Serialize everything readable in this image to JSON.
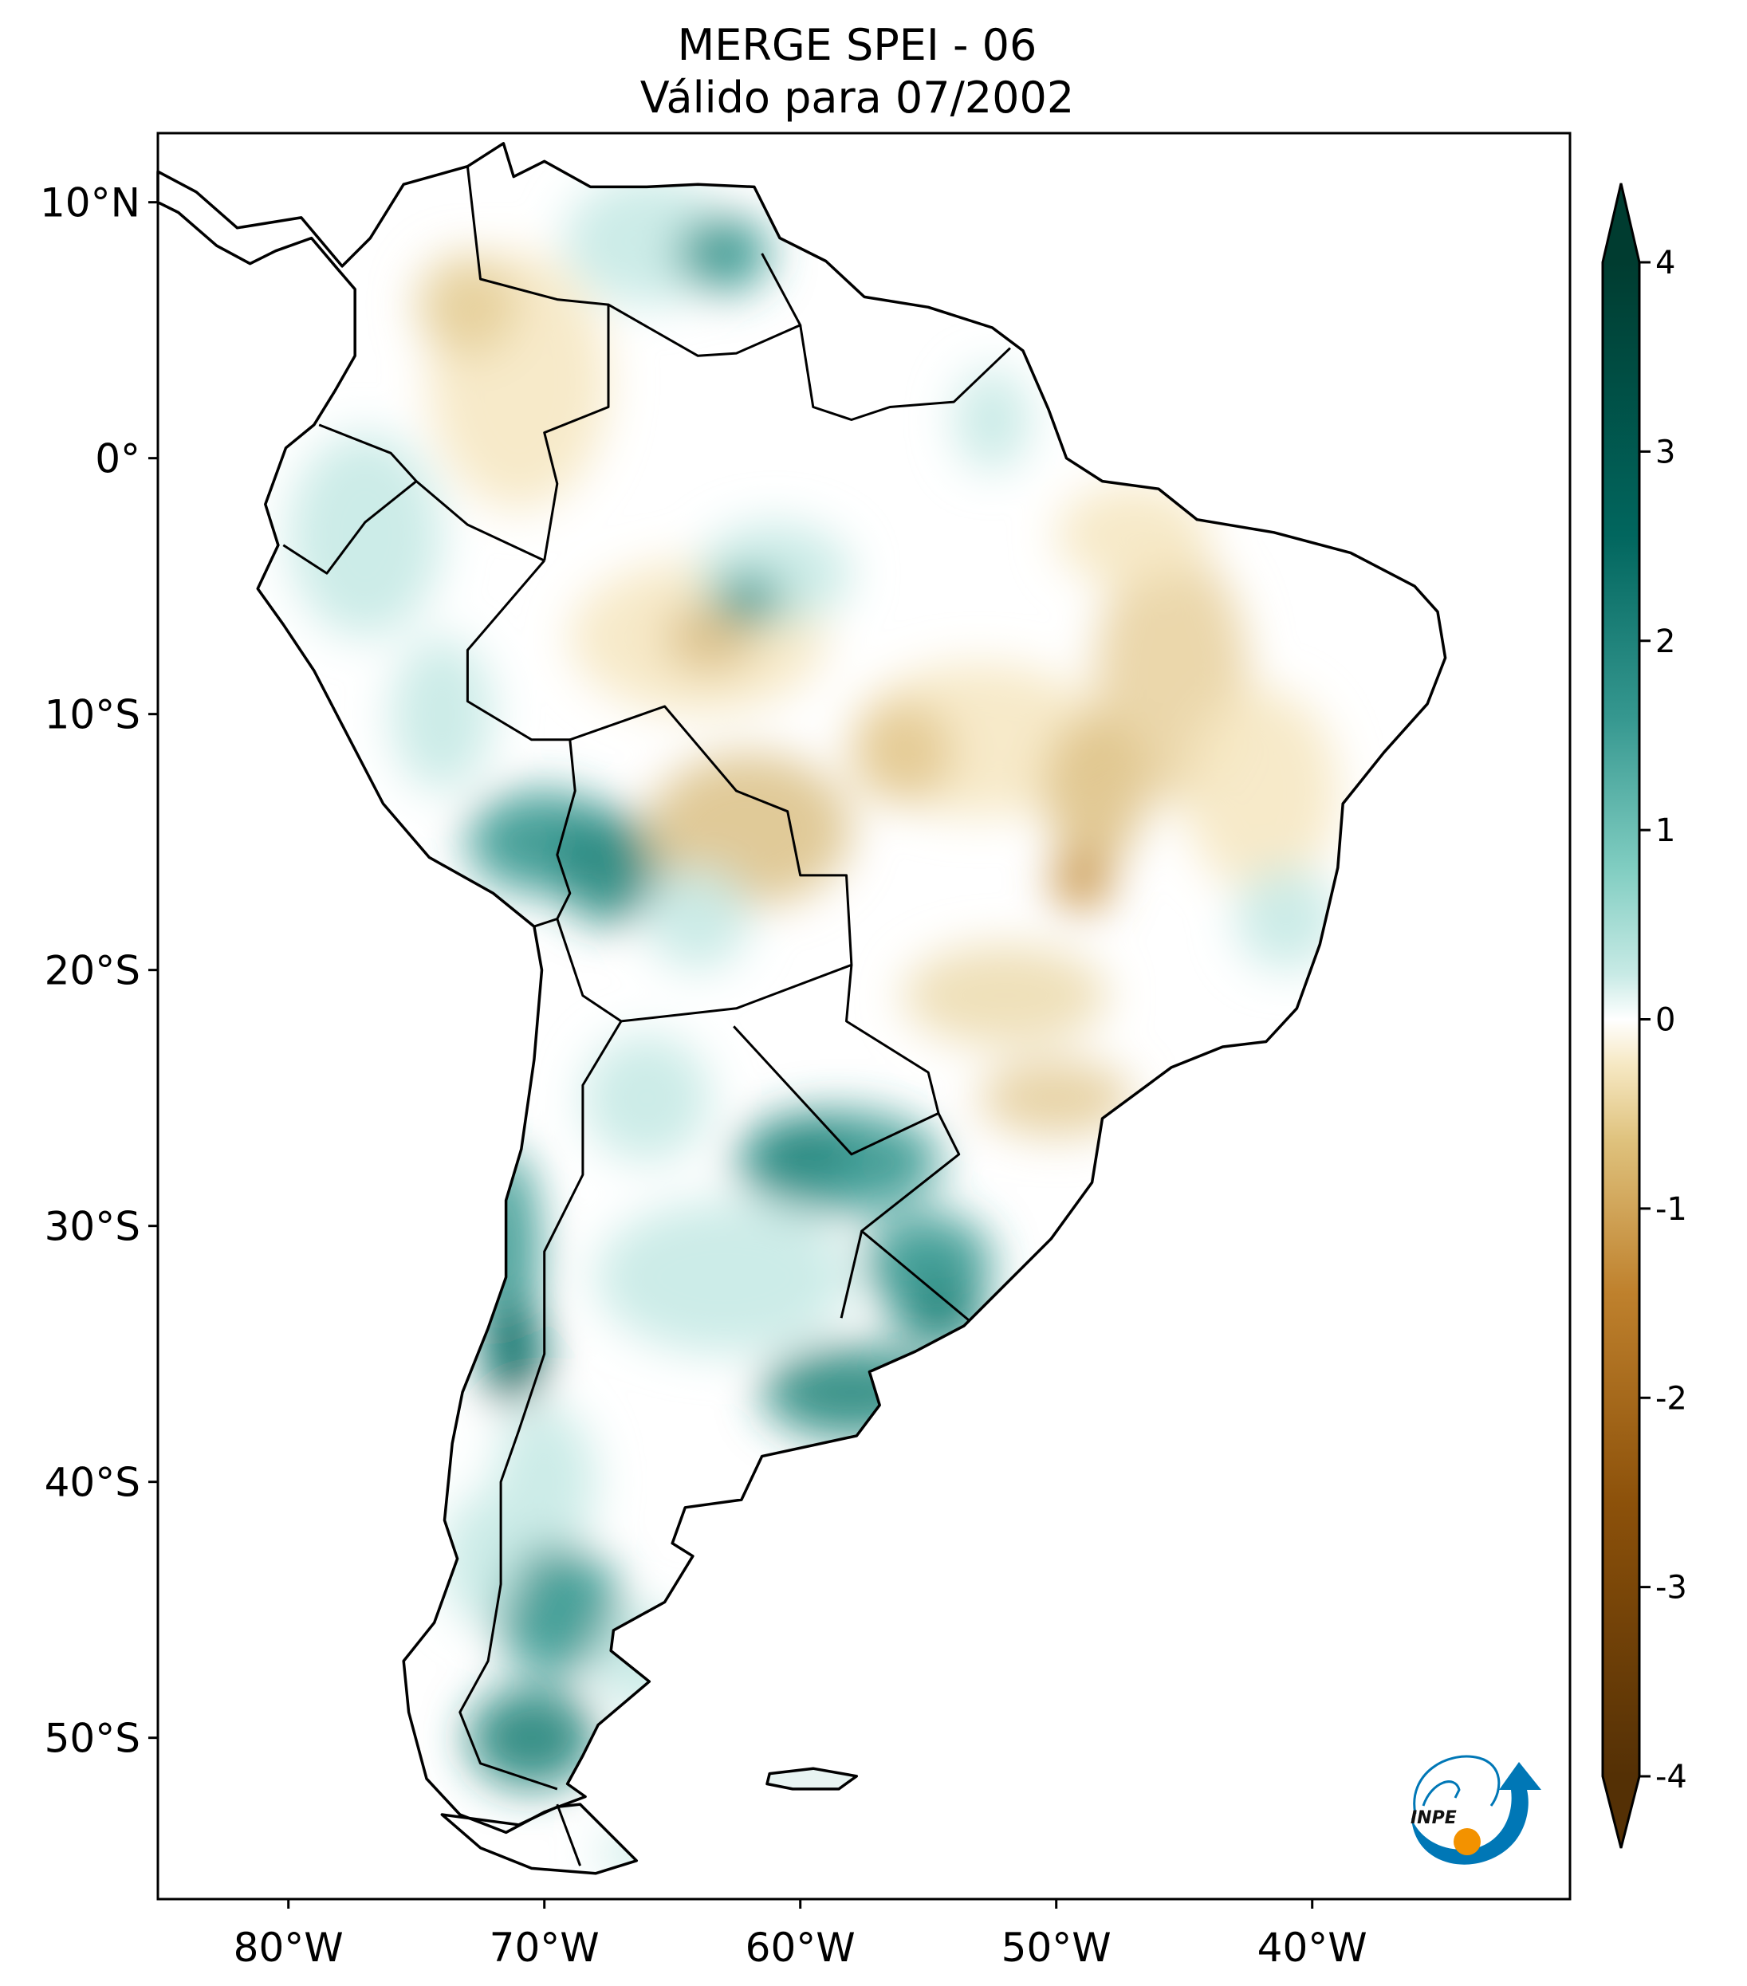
{
  "title": {
    "line1": "MERGE   SPEI - 06",
    "line2": "Válido para 07/2002"
  },
  "map": {
    "extent_lon": [
      -85.1,
      -30.0
    ],
    "extent_lat": [
      -56.2,
      12.7
    ],
    "lon_ticks": [
      {
        "value": -80,
        "label": "80°W"
      },
      {
        "value": -70,
        "label": "70°W"
      },
      {
        "value": -60,
        "label": "60°W"
      },
      {
        "value": -50,
        "label": "50°W"
      },
      {
        "value": -40,
        "label": "40°W"
      }
    ],
    "lat_ticks": [
      {
        "value": 10,
        "label": "10°N"
      },
      {
        "value": 0,
        "label": "0°"
      },
      {
        "value": -10,
        "label": "10°S"
      },
      {
        "value": -20,
        "label": "20°S"
      },
      {
        "value": -30,
        "label": "30°S"
      },
      {
        "value": -40,
        "label": "40°S"
      },
      {
        "value": -50,
        "label": "50°S"
      }
    ]
  },
  "colorbar": {
    "range": [
      -4,
      4
    ],
    "extend": "both",
    "ticks": [
      {
        "value": 4,
        "label": "4"
      },
      {
        "value": 3,
        "label": "3"
      },
      {
        "value": 2,
        "label": "2"
      },
      {
        "value": 1,
        "label": "1"
      },
      {
        "value": 0,
        "label": "0"
      },
      {
        "value": -1,
        "label": "-1"
      },
      {
        "value": -2,
        "label": "-2"
      },
      {
        "value": -3,
        "label": "-3"
      },
      {
        "value": -4,
        "label": "-4"
      }
    ],
    "colors": {
      "min": "#543005",
      "dry2": "#bf812d",
      "dry1": "#f6e8c3",
      "zero": "#ffffff",
      "wet1": "#c7eae5",
      "wet2": "#35978f",
      "max": "#003c30"
    }
  },
  "logo": {
    "text": "INPE",
    "blue": "#0077b6",
    "orange": "#f39200"
  }
}
